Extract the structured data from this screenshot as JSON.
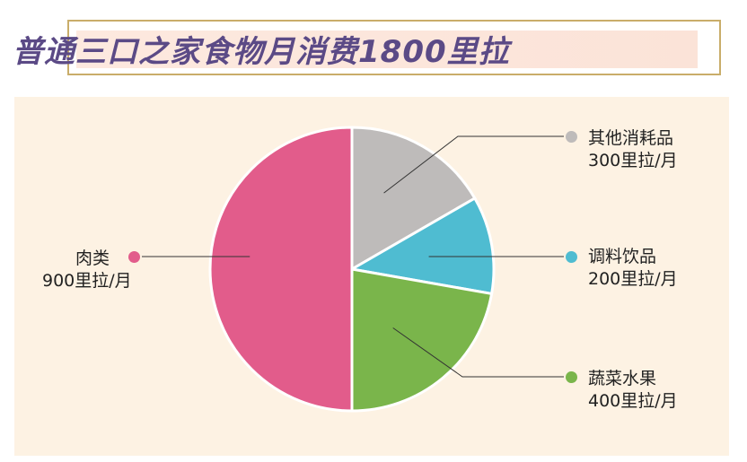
{
  "title": "普通三口之家食物月消费1800里拉",
  "colors": {
    "meat": "#e25c8b",
    "other": "#bebbba",
    "seasoning": "#4fbcd1",
    "veg": "#7ab54b",
    "title": "#5b4a86",
    "panel": "#fdf2e3"
  },
  "chart_data": {
    "type": "pie",
    "title": "普通三口之家食物月消费1800里拉",
    "total": 1800,
    "slices": [
      {
        "name": "其他消耗品",
        "value": 300,
        "label": "300里拉/月",
        "color": "#bebbba"
      },
      {
        "name": "调料饮品",
        "value": 200,
        "label": "200里拉/月",
        "color": "#4fbcd1"
      },
      {
        "name": "蔬菜水果",
        "value": 400,
        "label": "400里拉/月",
        "color": "#7ab54b"
      },
      {
        "name": "肉类",
        "value": 900,
        "label": "900里拉/月",
        "color": "#e25c8b"
      }
    ]
  }
}
